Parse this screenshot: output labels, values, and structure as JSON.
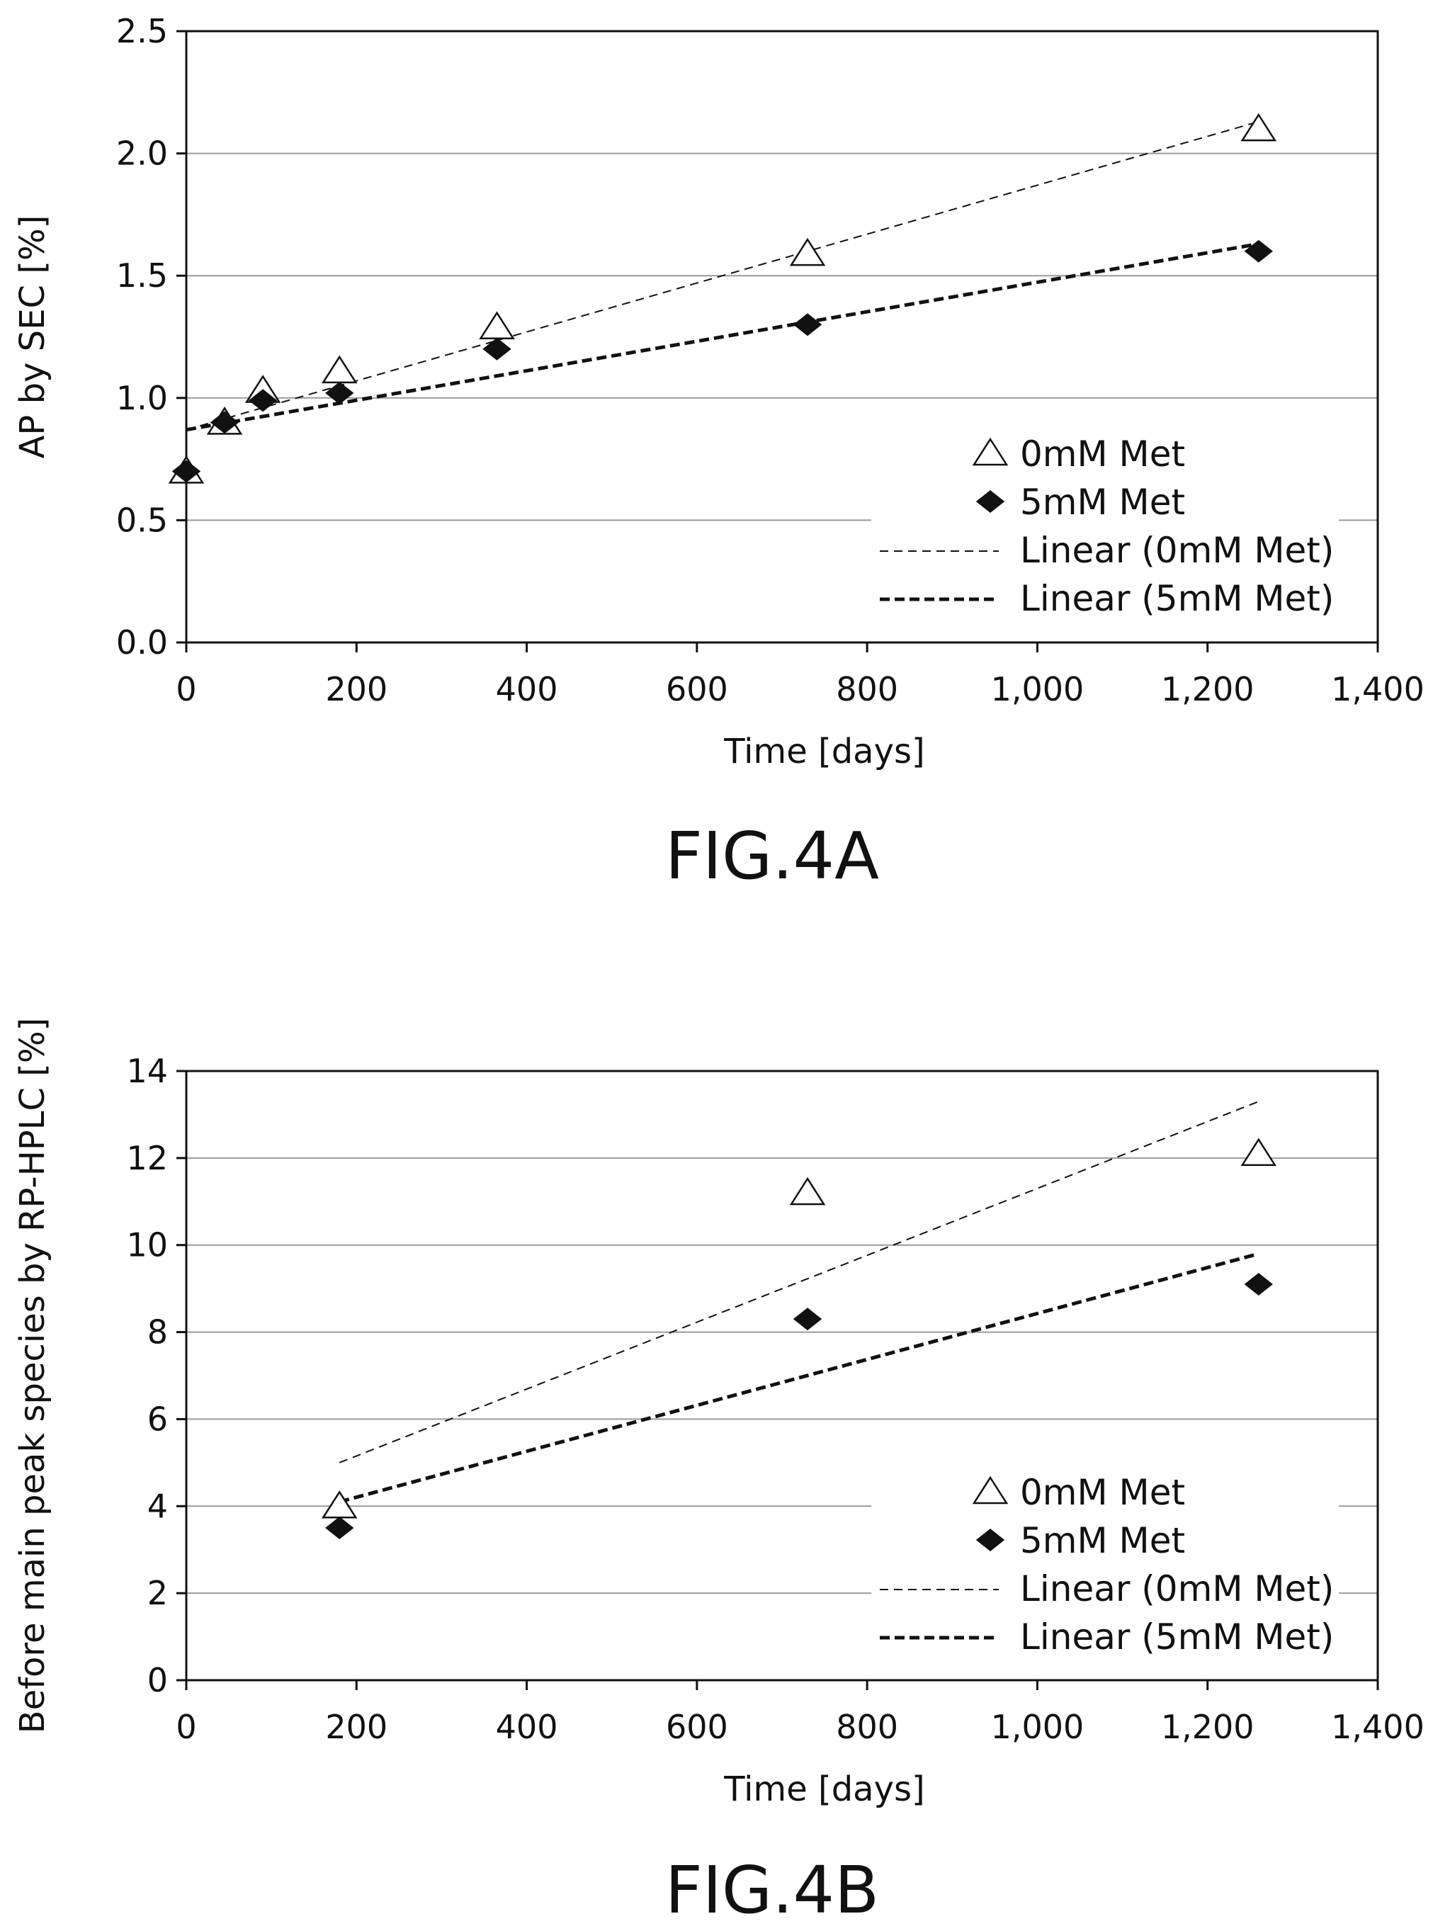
{
  "chart_data": [
    {
      "type": "scatter",
      "caption": "FIG.4A",
      "xlabel": "Time [days]",
      "ylabel": "AP by SEC [%]",
      "xlim": [
        0,
        1400
      ],
      "ylim": [
        0,
        2.5
      ],
      "x_ticks": [
        0,
        200,
        400,
        600,
        800,
        1000,
        1200,
        1400
      ],
      "x_tick_labels": [
        "0",
        "200",
        "400",
        "600",
        "800",
        "1,000",
        "1,200",
        "1,400"
      ],
      "y_ticks": [
        0,
        0.5,
        1.0,
        1.5,
        2.0,
        2.5
      ],
      "y_tick_labels": [
        "0.0",
        "0.5",
        "1.0",
        "1.5",
        "2.0",
        "2.5"
      ],
      "grid": "horizontal",
      "legend_position": "bottom-right",
      "series": [
        {
          "name": "0mM Met",
          "marker": "open-triangle",
          "x": [
            0,
            45,
            90,
            180,
            365,
            730,
            1260
          ],
          "y": [
            0.7,
            0.9,
            1.03,
            1.11,
            1.29,
            1.59,
            2.1
          ]
        },
        {
          "name": "5mM Met",
          "marker": "filled-diamond",
          "x": [
            0,
            45,
            90,
            180,
            365,
            730,
            1260
          ],
          "y": [
            0.7,
            0.9,
            0.99,
            1.02,
            1.2,
            1.3,
            1.6
          ]
        }
      ],
      "trendlines": [
        {
          "name": "Linear (0mM Met)",
          "style": "thin-dashed",
          "x": [
            0,
            1260
          ],
          "y": [
            0.87,
            2.13
          ]
        },
        {
          "name": "Linear (5mM Met)",
          "style": "bold-dashed",
          "x": [
            0,
            1260
          ],
          "y": [
            0.87,
            1.63
          ]
        }
      ]
    },
    {
      "type": "scatter",
      "caption": "FIG.4B",
      "xlabel": "Time [days]",
      "ylabel": "Before main peak species by RP-HPLC [%]",
      "xlim": [
        0,
        1400
      ],
      "ylim": [
        0,
        14
      ],
      "x_ticks": [
        0,
        200,
        400,
        600,
        800,
        1000,
        1200,
        1400
      ],
      "x_tick_labels": [
        "0",
        "200",
        "400",
        "600",
        "800",
        "1,000",
        "1,200",
        "1,400"
      ],
      "y_ticks": [
        0,
        2,
        4,
        6,
        8,
        10,
        12,
        14
      ],
      "y_tick_labels": [
        "0",
        "2",
        "4",
        "6",
        "8",
        "10",
        "12",
        "14"
      ],
      "grid": "horizontal",
      "legend_position": "bottom-right",
      "series": [
        {
          "name": "0mM Met",
          "marker": "open-triangle",
          "x": [
            180,
            730,
            1260
          ],
          "y": [
            4.0,
            11.2,
            12.1
          ]
        },
        {
          "name": "5mM Met",
          "marker": "filled-diamond",
          "x": [
            180,
            730,
            1260
          ],
          "y": [
            3.5,
            8.3,
            9.1
          ]
        }
      ],
      "trendlines": [
        {
          "name": "Linear (0mM Met)",
          "style": "thin-dashed",
          "x": [
            180,
            1260
          ],
          "y": [
            5.0,
            13.3
          ]
        },
        {
          "name": "Linear (5mM Met)",
          "style": "bold-dashed",
          "x": [
            180,
            1260
          ],
          "y": [
            4.1,
            9.8
          ]
        }
      ]
    }
  ]
}
